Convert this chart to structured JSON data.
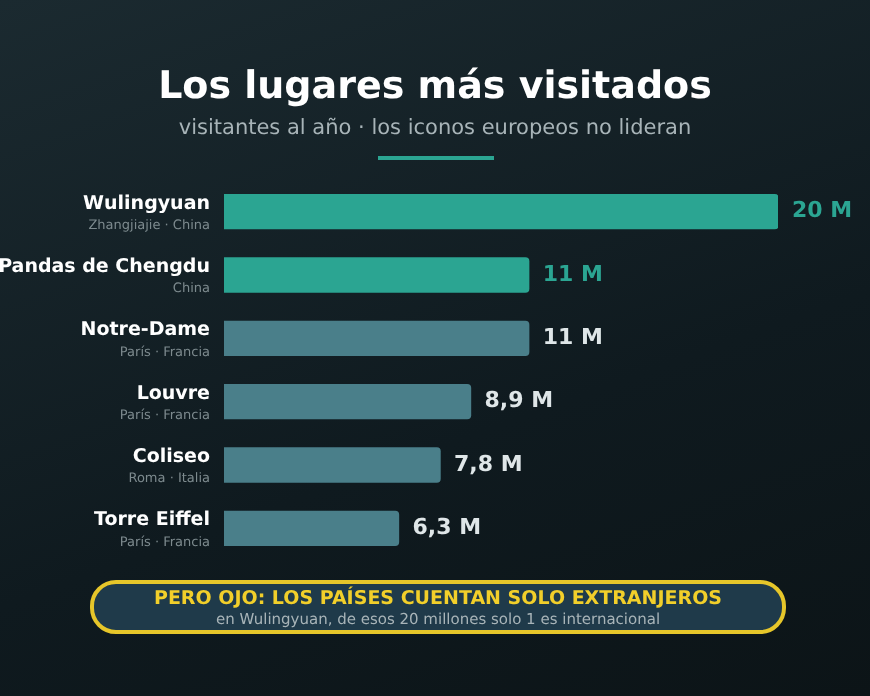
{
  "chart_data": {
    "type": "bar",
    "orientation": "horizontal",
    "title": "Los lugares más visitados",
    "subtitle": "visitantes al año · los iconos europeos no lideran",
    "categories": [
      "Wulingyuan\nZhangjiajie · China",
      "Pandas de Chengdu\nChina",
      "Notre-Dame\nParís · Francia",
      "Louvre\nParís · Francia",
      "Coliseo\nRoma · Italia",
      "Torre Eiffel\nParís · Francia"
    ],
    "values": [
      20,
      11,
      11,
      8.9,
      7.8,
      6.3
    ],
    "colors": [
      "#2ba592",
      "#2ba592",
      "#4a7f8a",
      "#4a7f8a",
      "#4a7f8a",
      "#4a7f8a"
    ],
    "value_labels": [
      "20 M",
      "11 M",
      "11 M",
      "8,9 M",
      "7,8 M",
      "6,3 M"
    ],
    "xlim": [
      0,
      20
    ],
    "tick_labels": "y",
    "annotations": [
      "PERO OJO: LOS PAÍSES CUENTAN SOLO EXTRANJEROS",
      "en Wulingyuan, de esos 20 millones solo 1 es internacional"
    ]
  }
}
